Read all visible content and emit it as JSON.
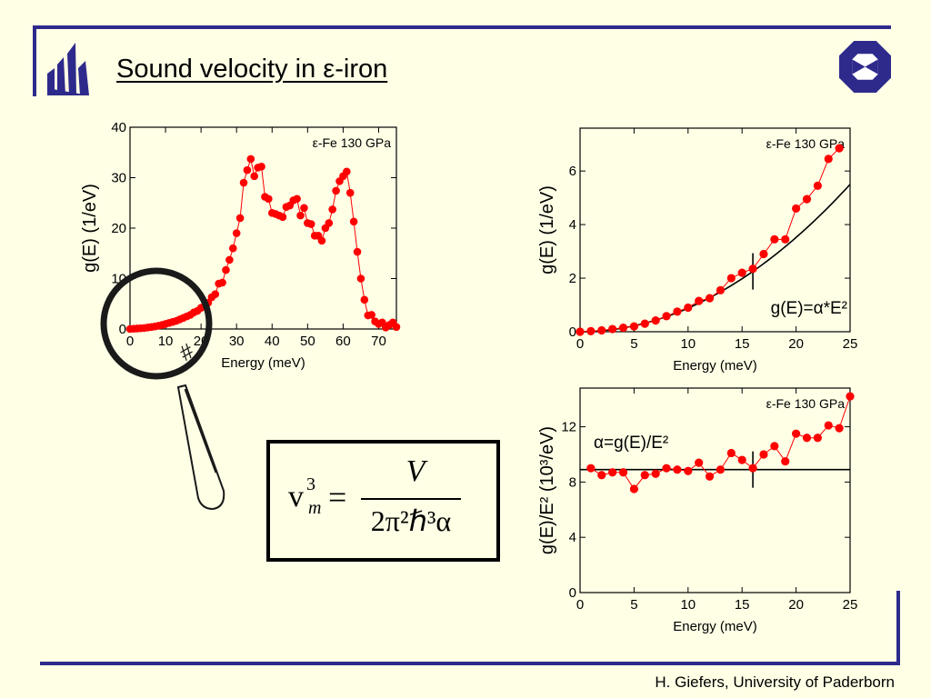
{
  "slide": {
    "title": "Sound velocity in ε-iron",
    "footer": "H. Giefers, University of Paderborn",
    "accent_color": "#2E2A8C",
    "logos": [
      "university-logo-icon",
      "institute-octagon-logo-icon"
    ]
  },
  "formula": {
    "lhs_base": "v",
    "lhs_sup": "3",
    "lhs_sub": "m",
    "equals": "=",
    "numerator": "V",
    "denominator": "2π²ℏ³α"
  },
  "magnifier": {
    "icon": "magnifying-glass-icon",
    "mark": "#"
  },
  "chart_data": [
    {
      "type": "line",
      "annotation": "ε-Fe 130 GPa",
      "xlabel": "Energy (meV)",
      "ylabel": "g(E) (1/eV)",
      "xlim": [
        0,
        75
      ],
      "ylim": [
        0,
        40
      ],
      "xticks": [
        0,
        10,
        20,
        30,
        40,
        50,
        60,
        70
      ],
      "yticks": [
        0,
        10,
        20,
        30,
        40
      ],
      "grid": false,
      "marker_color": "#FF0000",
      "series": [
        {
          "x": [
            0,
            1,
            2,
            3,
            4,
            5,
            6,
            7,
            8,
            9,
            10,
            11,
            12,
            13,
            14,
            15,
            16,
            17,
            18,
            19,
            20,
            21,
            22,
            23,
            24,
            25,
            26,
            27,
            28,
            29,
            30,
            31,
            32,
            33,
            34,
            35,
            36,
            37,
            38,
            39,
            40,
            41,
            42,
            43,
            44,
            45,
            46,
            47,
            48,
            49,
            50,
            51,
            52,
            53,
            54,
            55,
            56,
            57,
            58,
            59,
            60,
            61,
            62,
            63,
            64,
            65,
            66,
            67,
            68,
            69,
            70,
            71,
            72,
            73,
            74,
            75
          ],
          "y": [
            0,
            0.05,
            0.1,
            0.15,
            0.2,
            0.3,
            0.4,
            0.5,
            0.65,
            0.8,
            1.0,
            1.2,
            1.4,
            1.6,
            1.9,
            2.2,
            2.5,
            2.8,
            3.3,
            3.6,
            4.2,
            4.6,
            5.2,
            6.3,
            6.9,
            9.0,
            9.2,
            11.7,
            13.7,
            16,
            19,
            22,
            29,
            31.5,
            33.7,
            30.3,
            32,
            32.2,
            26.2,
            25.8,
            23,
            22.8,
            22.5,
            22.2,
            24.2,
            24.5,
            25.5,
            25.8,
            22.5,
            24,
            21,
            20.8,
            18.5,
            18.5,
            17.5,
            20,
            21,
            23.7,
            27.4,
            29.3,
            30.3,
            31.2,
            27,
            21.3,
            15.3,
            10,
            5.8,
            2.7,
            2.8,
            1.5,
            1.0,
            1.3,
            0.3,
            0.8,
            1.3,
            0.4
          ]
        }
      ]
    },
    {
      "type": "line",
      "annotation": "ε-Fe 130 GPa",
      "fit_label": "g(E)=α*E²",
      "xlabel": "Energy (meV)",
      "ylabel": "g(E) (1/eV)",
      "xlim": [
        0,
        25
      ],
      "ylim": [
        0,
        7.6
      ],
      "xticks": [
        0,
        5,
        10,
        15,
        20,
        25
      ],
      "yticks": [
        0,
        2,
        4,
        6
      ],
      "grid": false,
      "marker_color": "#FF0000",
      "fit": {
        "function": "alpha*E^2",
        "alpha": 0.0088,
        "color": "#000000"
      },
      "marker_x": 16,
      "series": [
        {
          "x": [
            0,
            1,
            2,
            3,
            4,
            5,
            6,
            7,
            8,
            9,
            10,
            11,
            12,
            13,
            14,
            15,
            16,
            17,
            18,
            19,
            20,
            21,
            22,
            23,
            24
          ],
          "y": [
            0,
            0.02,
            0.05,
            0.1,
            0.15,
            0.2,
            0.3,
            0.42,
            0.58,
            0.75,
            0.9,
            1.15,
            1.25,
            1.55,
            2.0,
            2.2,
            2.35,
            2.9,
            3.45,
            3.45,
            4.6,
            4.95,
            5.45,
            6.45,
            6.85
          ]
        }
      ]
    },
    {
      "type": "line",
      "annotation": "ε-Fe 130 GPa",
      "fit_label": "α=g(E)/E²",
      "xlabel": "Energy (meV)",
      "ylabel": "g(E)/E² (10³/eV)",
      "xlim": [
        0,
        25
      ],
      "ylim": [
        0,
        14.8
      ],
      "xticks": [
        0,
        5,
        10,
        15,
        20,
        25
      ],
      "yticks": [
        0,
        4,
        8,
        12
      ],
      "grid": false,
      "marker_color": "#FF0000",
      "fit": {
        "function": "constant",
        "value": 8.9,
        "color": "#000000"
      },
      "marker_x": 16,
      "series": [
        {
          "x": [
            1,
            2,
            3,
            4,
            5,
            6,
            7,
            8,
            9,
            10,
            11,
            12,
            13,
            14,
            15,
            16,
            17,
            18,
            19,
            20,
            21,
            22,
            23,
            24,
            25
          ],
          "y": [
            9.0,
            8.5,
            8.7,
            8.7,
            7.5,
            8.5,
            8.6,
            9.0,
            8.9,
            8.8,
            9.4,
            8.4,
            8.9,
            10.1,
            9.6,
            9.0,
            10.0,
            10.6,
            9.5,
            11.5,
            11.2,
            11.2,
            12.1,
            11.9,
            14.2
          ]
        }
      ]
    }
  ]
}
